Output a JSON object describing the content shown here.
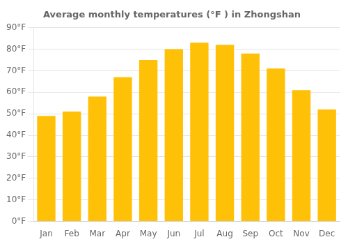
{
  "chart_data": {
    "type": "bar",
    "title": "Average monthly temperatures (°F ) in Zhongshan",
    "categories": [
      "Jan",
      "Feb",
      "Mar",
      "Apr",
      "May",
      "Jun",
      "Jul",
      "Aug",
      "Sep",
      "Oct",
      "Nov",
      "Dec"
    ],
    "values": [
      49,
      51,
      58,
      67,
      75,
      80,
      83,
      82,
      78,
      71,
      61,
      52
    ],
    "color": "#FFC107",
    "ylim": [
      0,
      90
    ],
    "yticks": [
      {
        "value": 0,
        "label": "0°F"
      },
      {
        "value": 10,
        "label": "10°F"
      },
      {
        "value": 20,
        "label": "20°F"
      },
      {
        "value": 30,
        "label": "30°F"
      },
      {
        "value": 40,
        "label": "40°F"
      },
      {
        "value": 50,
        "label": "50°F"
      },
      {
        "value": 60,
        "label": "60°F"
      },
      {
        "value": 70,
        "label": "70°F"
      },
      {
        "value": 80,
        "label": "80°F"
      },
      {
        "value": 90,
        "label": "90°F"
      }
    ],
    "grid": true
  }
}
